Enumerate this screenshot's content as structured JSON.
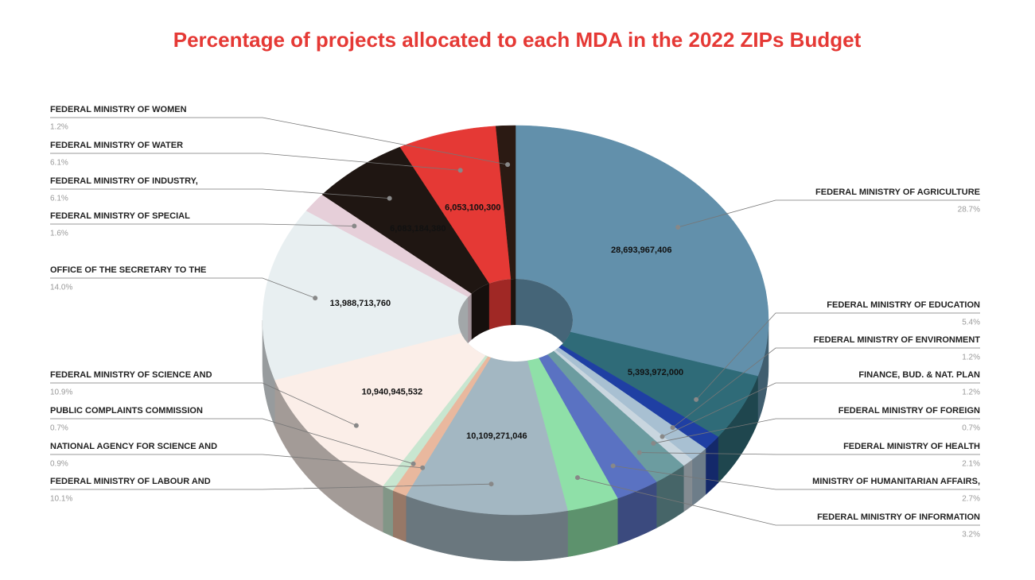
{
  "chart_data": {
    "type": "pie",
    "style": "3d-donut",
    "title": "Percentage of projects allocated to each MDA in the 2022 ZIPs Budget",
    "categories": [
      "FEDERAL MINISTRY OF AGRICULTURE",
      "FEDERAL MINISTRY OF EDUCATION",
      "FEDERAL MINISTRY OF ENVIRONMENT",
      "FINANCE, BUD. & NAT. PLAN",
      "FEDERAL MINISTRY OF FOREIGN",
      "FEDERAL MINISTRY OF HEALTH",
      "MINISTRY OF HUMANITARIAN AFFAIRS,",
      "FEDERAL MINISTRY OF INFORMATION",
      "FEDERAL MINISTRY OF LABOUR AND",
      "NATIONAL AGENCY FOR SCIENCE AND",
      "PUBLIC COMPLAINTS COMMISSION",
      "FEDERAL MINISTRY OF SCIENCE AND",
      "OFFICE OF THE SECRETARY TO THE",
      "FEDERAL MINISTRY OF SPECIAL",
      "FEDERAL MINISTRY OF INDUSTRY,",
      "FEDERAL MINISTRY OF WATER",
      "FEDERAL MINISTRY OF WOMEN"
    ],
    "values": [
      28.7,
      5.4,
      1.2,
      1.2,
      0.7,
      2.1,
      2.7,
      3.2,
      10.1,
      0.9,
      0.7,
      10.9,
      14.0,
      1.6,
      6.1,
      6.1,
      1.2
    ],
    "value_labels": [
      "28.7%",
      "5.4%",
      "1.2%",
      "1.2%",
      "0.7%",
      "2.1%",
      "2.7%",
      "3.2%",
      "10.1%",
      "0.9%",
      "0.7%",
      "10.9%",
      "14.0%",
      "1.6%",
      "6.1%",
      "6.1%",
      "1.2%"
    ],
    "amounts": [
      "28,693,967,406",
      "5,393,972,000",
      null,
      null,
      null,
      null,
      null,
      null,
      "10,109,271,046",
      null,
      null,
      "10,940,945,532",
      "13,988,713,760",
      null,
      "6,083,184,380",
      "6,053,100,300",
      null
    ],
    "colors": [
      "#6290ab",
      "#2f6b78",
      "#1f3fa3",
      "#a8c0d2",
      "#c9d6df",
      "#6c9ca0",
      "#5a72c2",
      "#8fe0a8",
      "#a3b7c2",
      "#e9b89e",
      "#c8e6d0",
      "#fbeee8",
      "#e8eff1",
      "#e6cfd9",
      "#1f1612",
      "#e53935",
      "#2b1a13"
    ]
  }
}
